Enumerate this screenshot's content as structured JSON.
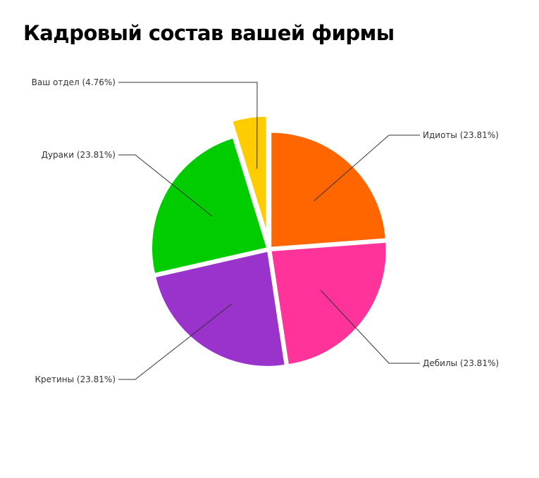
{
  "chart_data": {
    "type": "pie",
    "title": "Кадровый состав вашей фирмы",
    "slices": [
      {
        "label": "Идиоты (23.81%)",
        "value": 23.81,
        "color": "#ff6600",
        "exploded": false
      },
      {
        "label": "Дебилы (23.81%)",
        "value": 23.81,
        "color": "#ff3399",
        "exploded": false
      },
      {
        "label": "Кретины (23.81%)",
        "value": 23.81,
        "color": "#9933cc",
        "exploded": false
      },
      {
        "label": "Дураки (23.81%)",
        "value": 23.81,
        "color": "#00cc00",
        "exploded": false
      },
      {
        "label": "Ваш отдел (4.76%)",
        "value": 4.76,
        "color": "#ffcc00",
        "exploded": true
      }
    ]
  }
}
